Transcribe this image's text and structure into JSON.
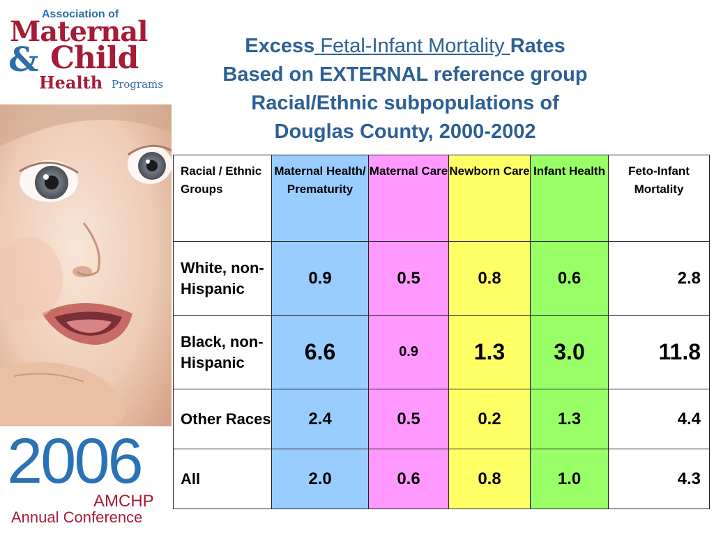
{
  "logo": {
    "line1": "Association of",
    "line2": "Maternal",
    "line3_amp": "&",
    "line3": "Child",
    "line4": "Health",
    "line4_small": "Programs"
  },
  "conference": {
    "year": "2006",
    "org": "AMCHP",
    "event": "Annual Conference"
  },
  "title": {
    "line1_a": "Excess",
    "line1_b": " Fetal-Infant Mortality ",
    "line1_c": "Rates",
    "line2": "Based on EXTERNAL reference group",
    "line3": "Racial/Ethnic subpopulations of",
    "line4": "Douglas County, 2000-2002"
  },
  "table": {
    "headers": [
      "Racial / Ethnic Groups",
      "Maternal Health/ Prematurity",
      "Maternal Care",
      "Newborn Care",
      "Infant Health",
      "Feto-Infant Mortality"
    ],
    "colors": {
      "maternal_health": "#99ccff",
      "maternal_care": "#ff99ff",
      "newborn_care": "#ffff66",
      "infant_health": "#99ff66"
    },
    "rows": [
      {
        "group": "White, non-Hispanic",
        "values": [
          "0.9",
          "0.5",
          "0.8",
          "0.6",
          "2.8"
        ]
      },
      {
        "group": "Black, non-Hispanic",
        "values": [
          "6.6",
          "0.9",
          "1.3",
          "3.0",
          "11.8"
        ]
      },
      {
        "group": "Other Races",
        "values": [
          "2.4",
          "0.5",
          "0.2",
          "1.3",
          "4.4"
        ]
      },
      {
        "group": "All",
        "values": [
          "2.0",
          "0.6",
          "0.8",
          "1.0",
          "4.3"
        ]
      }
    ]
  }
}
